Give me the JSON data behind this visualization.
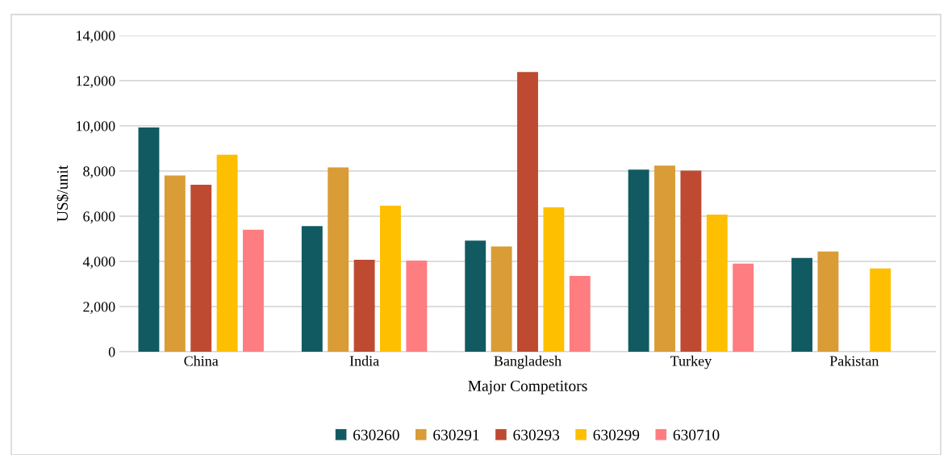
{
  "chart_data": {
    "type": "bar",
    "xlabel": "Major Competitors",
    "ylabel": "US$/unit",
    "categories": [
      "China",
      "India",
      "Bangladesh",
      "Turkey",
      "Pakistan"
    ],
    "series": [
      {
        "name": "630260",
        "color": "#125a61",
        "values": [
          9930,
          5560,
          4920,
          8060,
          4150
        ]
      },
      {
        "name": "630291",
        "color": "#d99c36",
        "values": [
          7800,
          8160,
          4660,
          8240,
          4440
        ]
      },
      {
        "name": "630293",
        "color": "#be4a32",
        "values": [
          7390,
          4070,
          12380,
          8020,
          null
        ]
      },
      {
        "name": "630299",
        "color": "#fdbf00",
        "values": [
          8720,
          6460,
          6390,
          6070,
          3690
        ]
      },
      {
        "name": "630710",
        "color": "#fe7d80",
        "values": [
          5400,
          4040,
          3360,
          3900,
          null
        ]
      }
    ],
    "ylim": [
      0,
      14000
    ],
    "yticks": [
      {
        "value": 0,
        "label": "0"
      },
      {
        "value": 2000,
        "label": "2,000"
      },
      {
        "value": 4000,
        "label": "4,000"
      },
      {
        "value": 6000,
        "label": "6,000"
      },
      {
        "value": 8000,
        "label": "8,000"
      },
      {
        "value": 10000,
        "label": "10,000"
      },
      {
        "value": 12000,
        "label": "12,000"
      },
      {
        "value": 14000,
        "label": "14,000"
      }
    ],
    "grid": "y",
    "legend": "bottom"
  }
}
